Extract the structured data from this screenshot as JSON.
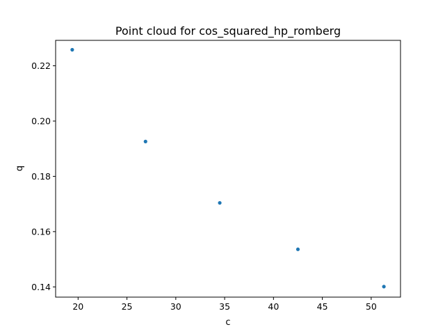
{
  "chart_data": {
    "type": "scatter",
    "title": "Point cloud for cos_squared_hp_romberg",
    "xlabel": "c",
    "ylabel": "q",
    "xlim": [
      17.7,
      53.0
    ],
    "ylim": [
      0.1363,
      0.2292
    ],
    "xticks": [
      20,
      25,
      30,
      35,
      40,
      45,
      50
    ],
    "yticks": [
      0.14,
      0.16,
      0.18,
      0.2,
      0.22
    ],
    "xtick_labels": [
      "20",
      "25",
      "30",
      "35",
      "40",
      "45",
      "50"
    ],
    "ytick_labels": [
      "0.14",
      "0.16",
      "0.18",
      "0.20",
      "0.22"
    ],
    "grid": false,
    "marker_color": "#1f77b4",
    "x": [
      19.4,
      26.9,
      34.5,
      42.5,
      51.3
    ],
    "y": [
      0.2258,
      0.1926,
      0.1704,
      0.1536,
      0.1401
    ]
  }
}
